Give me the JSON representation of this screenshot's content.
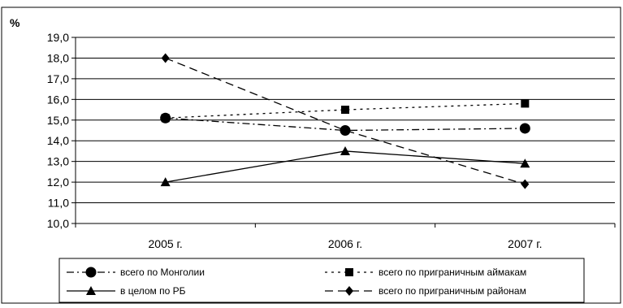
{
  "chart_data": {
    "type": "line",
    "ylabel": "%",
    "categories": [
      "2005 г.",
      "2006 г.",
      "2007 г."
    ],
    "ylim": [
      10.0,
      19.0
    ],
    "yticks": [
      "10,0",
      "11,0",
      "12,0",
      "13,0",
      "14,0",
      "15,0",
      "16,0",
      "17,0",
      "18,0",
      "19,0"
    ],
    "grid": true,
    "legend_position": "bottom",
    "series": [
      {
        "name": "всего по Монголии",
        "values": [
          15.1,
          14.5,
          14.6
        ],
        "marker": "circle",
        "dash": "dash-dot"
      },
      {
        "name": "всего по приграничным аймакам",
        "values": [
          15.1,
          15.5,
          15.8
        ],
        "marker": "square",
        "dash": "dotted"
      },
      {
        "name": "в целом по РБ",
        "values": [
          12.0,
          13.5,
          12.9
        ],
        "marker": "triangle",
        "dash": "solid"
      },
      {
        "name": "всего по приграничным районам",
        "values": [
          18.0,
          14.5,
          11.9
        ],
        "marker": "diamond",
        "dash": "dashed"
      }
    ]
  }
}
